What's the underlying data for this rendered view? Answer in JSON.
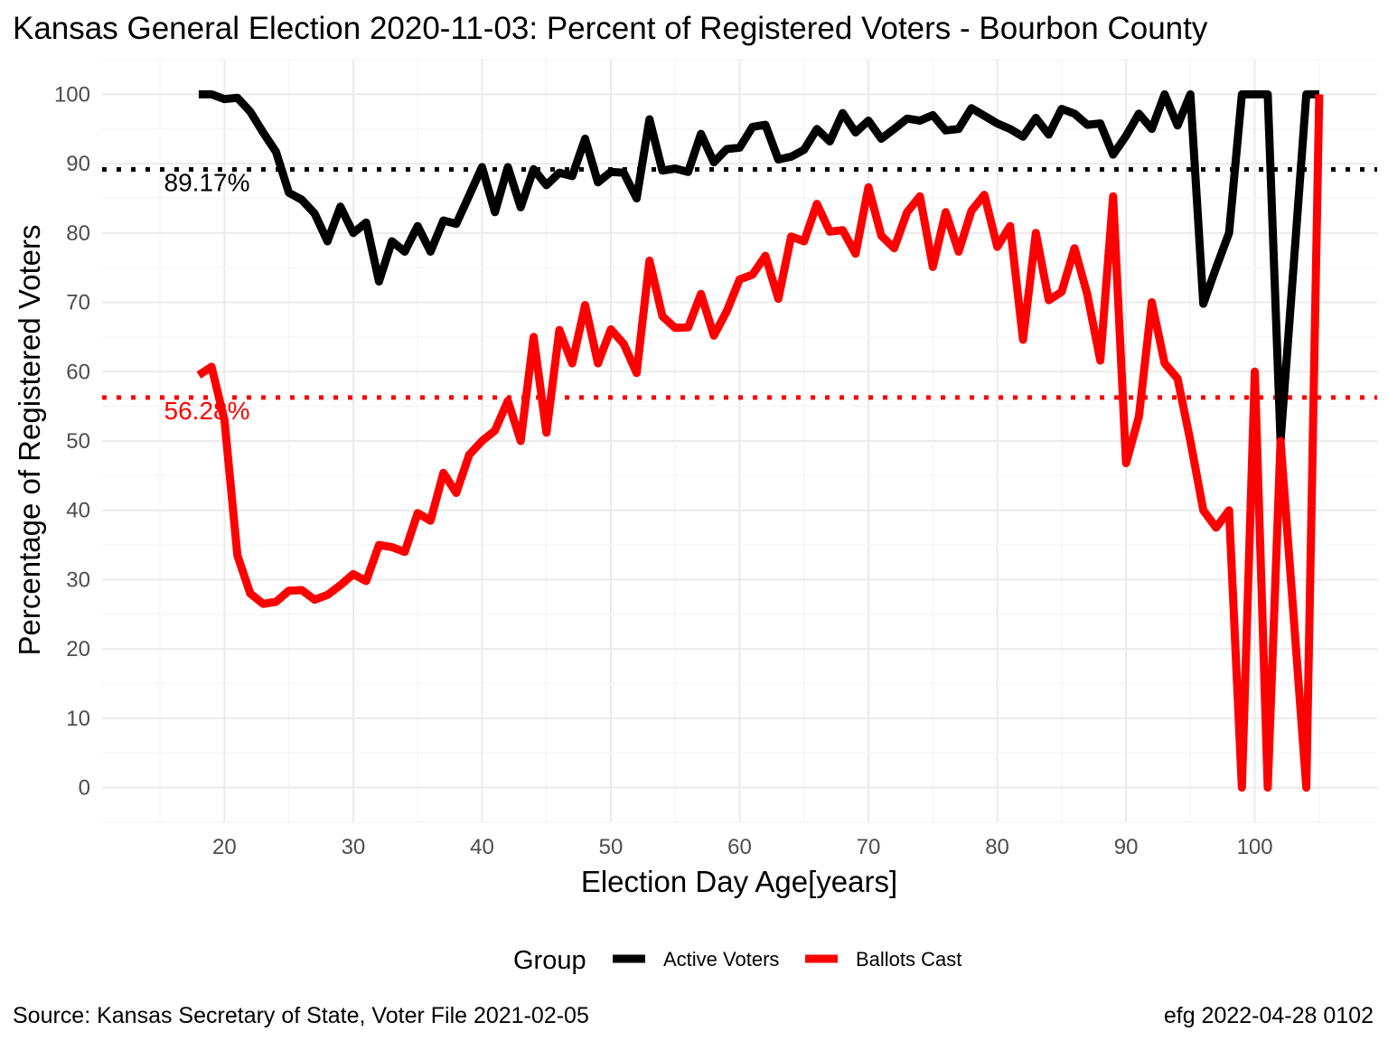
{
  "chart_data": {
    "type": "line",
    "title": "Kansas General Election 2020-11-03:  Percent of Registered Voters - Bourbon County",
    "xlabel": "Election Day Age[years]",
    "ylabel": "Percentage of Registered Voters",
    "xlim": [
      10.5,
      109.5
    ],
    "ylim": [
      -5,
      105
    ],
    "x_ticks": [
      20,
      30,
      40,
      50,
      60,
      70,
      80,
      90,
      100
    ],
    "y_ticks": [
      0,
      10,
      20,
      30,
      40,
      50,
      60,
      70,
      80,
      90,
      100
    ],
    "grid": true,
    "legend": {
      "title": "Group",
      "position": "bottom",
      "entries": [
        {
          "label": "Active Voters",
          "color": "#000000"
        },
        {
          "label": "Ballots Cast",
          "color": "#ff0000"
        }
      ]
    },
    "reference_lines": [
      {
        "series": "Active Voters",
        "value": 89.17,
        "label": "89.17%",
        "color": "#000000"
      },
      {
        "series": "Ballots Cast",
        "value": 56.28,
        "label": "56.28%",
        "color": "#ff0000"
      }
    ],
    "series": [
      {
        "name": "Active Voters",
        "color": "#000000",
        "points": [
          [
            18,
            100
          ],
          [
            19,
            100
          ],
          [
            20,
            99.3
          ],
          [
            21,
            99.5
          ],
          [
            22,
            97.5
          ],
          [
            23,
            94.5
          ],
          [
            24,
            91.7
          ],
          [
            25,
            85.8
          ],
          [
            26,
            84.8
          ],
          [
            27,
            82.8
          ],
          [
            28,
            78.8
          ],
          [
            29,
            83.8
          ],
          [
            30,
            80
          ],
          [
            31,
            81.5
          ],
          [
            32,
            73
          ],
          [
            33,
            78.8
          ],
          [
            34,
            77.3
          ],
          [
            35,
            81
          ],
          [
            36,
            77.3
          ],
          [
            37,
            81.8
          ],
          [
            38,
            81.3
          ],
          [
            39,
            85.4
          ],
          [
            40,
            89.5
          ],
          [
            41,
            83
          ],
          [
            42,
            89.5
          ],
          [
            43,
            83.7
          ],
          [
            44,
            89.2
          ],
          [
            45,
            86.9
          ],
          [
            46,
            88.7
          ],
          [
            47,
            88.2
          ],
          [
            48,
            93.6
          ],
          [
            49,
            87.3
          ],
          [
            50,
            88.8
          ],
          [
            51,
            88.7
          ],
          [
            52,
            85
          ],
          [
            53,
            96.4
          ],
          [
            54,
            89
          ],
          [
            55,
            89.3
          ],
          [
            56,
            88.8
          ],
          [
            57,
            94.3
          ],
          [
            58,
            90.2
          ],
          [
            59,
            92.1
          ],
          [
            60,
            92.3
          ],
          [
            61,
            95.3
          ],
          [
            62,
            95.6
          ],
          [
            63,
            90.6
          ],
          [
            64,
            91
          ],
          [
            65,
            92
          ],
          [
            66,
            95
          ],
          [
            67,
            93.2
          ],
          [
            68,
            97.3
          ],
          [
            69,
            94.5
          ],
          [
            70,
            96.2
          ],
          [
            71,
            93.6
          ],
          [
            72,
            95
          ],
          [
            73,
            96.5
          ],
          [
            74,
            96.2
          ],
          [
            75,
            97
          ],
          [
            76,
            94.8
          ],
          [
            77,
            95
          ],
          [
            78,
            98
          ],
          [
            79,
            96.9
          ],
          [
            80,
            95.8
          ],
          [
            81,
            95
          ],
          [
            82,
            93.9
          ],
          [
            83,
            96.6
          ],
          [
            84,
            94.2
          ],
          [
            85,
            97.9
          ],
          [
            86,
            97.2
          ],
          [
            87,
            95.6
          ],
          [
            88,
            95.8
          ],
          [
            89,
            91.3
          ],
          [
            90,
            94
          ],
          [
            91,
            97.2
          ],
          [
            92,
            95
          ],
          [
            93,
            100
          ],
          [
            94,
            95.5
          ],
          [
            95,
            100
          ],
          [
            96,
            69.8
          ],
          [
            97,
            75
          ],
          [
            98,
            80
          ],
          [
            99,
            100
          ],
          [
            100,
            100
          ],
          [
            101,
            100
          ],
          [
            102,
            50
          ],
          [
            103,
            75
          ],
          [
            104,
            100
          ],
          [
            105,
            100
          ]
        ]
      },
      {
        "name": "Ballots Cast",
        "color": "#ff0000",
        "points": [
          [
            18,
            59.5
          ],
          [
            19,
            60.7
          ],
          [
            20,
            53
          ],
          [
            21,
            33.5
          ],
          [
            22,
            28
          ],
          [
            23,
            26.5
          ],
          [
            24,
            26.8
          ],
          [
            25,
            28.4
          ],
          [
            26,
            28.5
          ],
          [
            27,
            27.1
          ],
          [
            28,
            27.8
          ],
          [
            29,
            29.2
          ],
          [
            30,
            30.8
          ],
          [
            31,
            29.8
          ],
          [
            32,
            35
          ],
          [
            33,
            34.7
          ],
          [
            34,
            34
          ],
          [
            35,
            39.6
          ],
          [
            36,
            38.5
          ],
          [
            37,
            45.4
          ],
          [
            38,
            42.5
          ],
          [
            39,
            48
          ],
          [
            40,
            50
          ],
          [
            41,
            51.5
          ],
          [
            42,
            55.8
          ],
          [
            43,
            50
          ],
          [
            44,
            65
          ],
          [
            45,
            51.2
          ],
          [
            46,
            66
          ],
          [
            47,
            61.2
          ],
          [
            48,
            69.6
          ],
          [
            49,
            61.2
          ],
          [
            50,
            66.1
          ],
          [
            51,
            64
          ],
          [
            52,
            59.8
          ],
          [
            53,
            76
          ],
          [
            54,
            68
          ],
          [
            55,
            66.3
          ],
          [
            56,
            66.4
          ],
          [
            57,
            71.2
          ],
          [
            58,
            65.2
          ],
          [
            59,
            68.7
          ],
          [
            60,
            73.3
          ],
          [
            61,
            74
          ],
          [
            62,
            76.7
          ],
          [
            63,
            70.5
          ],
          [
            64,
            79.5
          ],
          [
            65,
            78.8
          ],
          [
            66,
            84.2
          ],
          [
            67,
            80.2
          ],
          [
            68,
            80.4
          ],
          [
            69,
            77
          ],
          [
            70,
            86.6
          ],
          [
            71,
            79.6
          ],
          [
            72,
            77.8
          ],
          [
            73,
            83
          ],
          [
            74,
            85.3
          ],
          [
            75,
            75.1
          ],
          [
            76,
            83
          ],
          [
            77,
            77.3
          ],
          [
            78,
            83.2
          ],
          [
            79,
            85.5
          ],
          [
            80,
            78
          ],
          [
            81,
            81
          ],
          [
            82,
            64.6
          ],
          [
            83,
            80
          ],
          [
            84,
            70.3
          ],
          [
            85,
            71.5
          ],
          [
            86,
            77.8
          ],
          [
            87,
            71.1
          ],
          [
            88,
            61.6
          ],
          [
            89,
            85.3
          ],
          [
            90,
            46.8
          ],
          [
            91,
            53.5
          ],
          [
            92,
            70
          ],
          [
            93,
            61.2
          ],
          [
            94,
            59
          ],
          [
            95,
            50
          ],
          [
            96,
            40
          ],
          [
            97,
            37.5
          ],
          [
            98,
            40
          ],
          [
            99,
            0
          ],
          [
            100,
            60
          ],
          [
            101,
            0
          ],
          [
            102,
            50
          ],
          [
            103,
            25
          ],
          [
            104,
            0
          ],
          [
            105,
            100
          ]
        ]
      }
    ]
  },
  "caption": {
    "source": "Source:  Kansas Secretary of State, Voter File  2021-02-05",
    "credit": "efg 2022-04-28 0102"
  }
}
